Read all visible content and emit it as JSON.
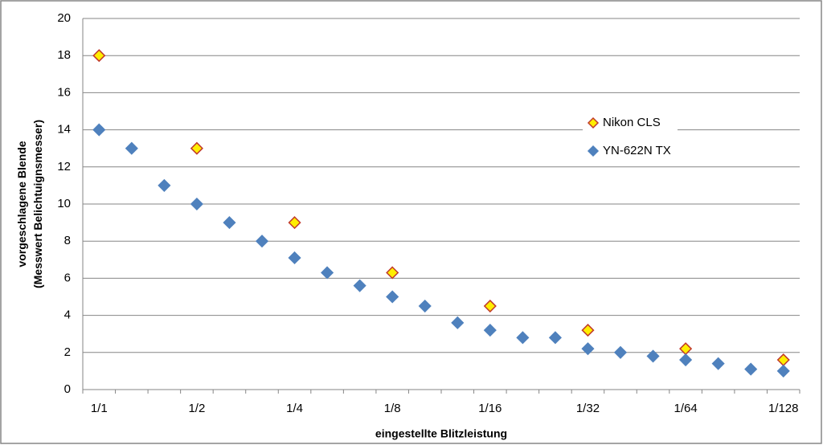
{
  "chart_data": {
    "type": "scatter",
    "x_label": "eingestellte Blitzleistung",
    "y_label": [
      "vorgeschlagene Blende",
      "(Messwert Belichtuignsmesser)"
    ],
    "categories": [
      "1/1",
      null,
      null,
      "1/2",
      null,
      null,
      "1/4",
      null,
      null,
      "1/8",
      null,
      null,
      "1/16",
      null,
      null,
      "1/32",
      null,
      null,
      "1/64",
      null,
      null,
      "1/128"
    ],
    "series": [
      {
        "name": "Nikon CLS",
        "color": "#ffee00",
        "edge": "#c0392b",
        "values": [
          18,
          null,
          null,
          13,
          null,
          null,
          9,
          null,
          null,
          6.3,
          null,
          null,
          4.5,
          null,
          null,
          3.2,
          null,
          null,
          2.2,
          null,
          null,
          1.6
        ]
      },
      {
        "name": "YN-622N TX",
        "color": "#4f81bd",
        "edge": "#4f81bd",
        "values": [
          14,
          13,
          11,
          10,
          9,
          8,
          7.1,
          6.3,
          5.6,
          5,
          4.5,
          3.6,
          3.2,
          2.8,
          2.8,
          2.2,
          2,
          1.8,
          1.6,
          1.4,
          1.1,
          1.0
        ]
      }
    ],
    "ylim": [
      0,
      20
    ],
    "yticks": [
      0,
      2,
      4,
      6,
      8,
      10,
      12,
      14,
      16,
      18,
      20
    ],
    "grid": true
  }
}
